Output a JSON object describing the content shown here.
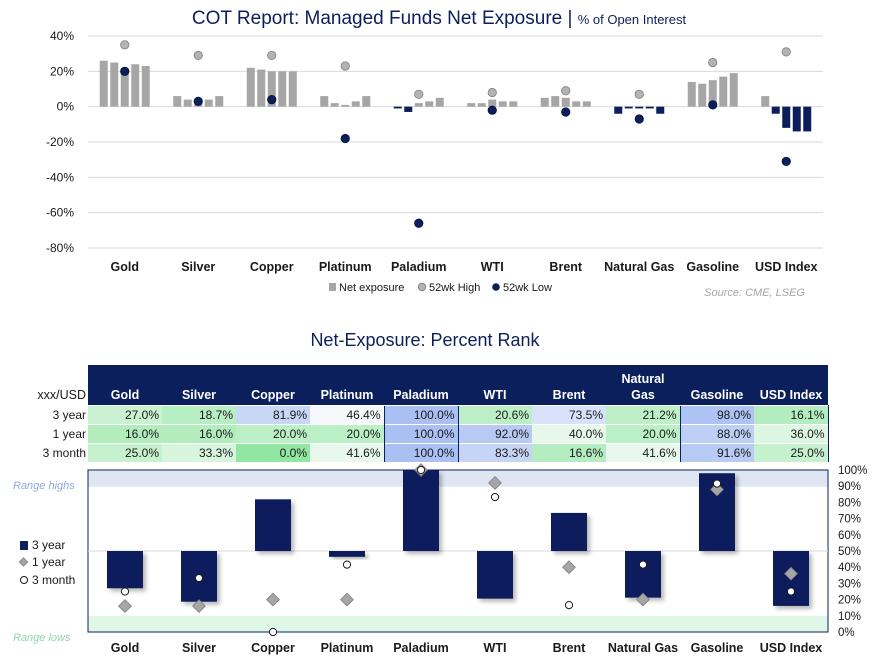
{
  "titles": {
    "top_main": "COT Report: Managed Funds Net Exposure | ",
    "top_sub": "% of Open Interest",
    "source": "Source: CME, LSEG",
    "bottom": "Net-Exposure: Percent Rank"
  },
  "colors": {
    "navy": "#0b1f5c",
    "bar_gray": "#a6a6a6",
    "high_marker": "#a6a6a6",
    "low_marker": "#0b1f5c",
    "range_high_band": "#dfe6f2",
    "range_low_band": "#dff7e6"
  },
  "chart_data": [
    {
      "type": "bar",
      "title": "COT Report: Managed Funds Net Exposure | % of Open Interest",
      "ylim": [
        -80,
        40
      ],
      "yticks": [
        "40%",
        "20%",
        "0%",
        "-20%",
        "-40%",
        "-60%",
        "-80%"
      ],
      "ytick_values": [
        40,
        20,
        0,
        -20,
        -40,
        -60,
        -80
      ],
      "grid": true,
      "categories": [
        "Gold",
        "Silver",
        "Copper",
        "Platinum",
        "Paladium",
        "WTI",
        "Brent",
        "Natural Gas",
        "Gasoline",
        "USD Index"
      ],
      "legend": {
        "placement": "bottom",
        "items": [
          "Net exposure",
          "52wk High",
          "52wk Low"
        ]
      },
      "series": [
        {
          "name": "Net exposure",
          "values": [
            [
              26,
              25,
              22,
              24,
              23
            ],
            [
              6,
              4,
              3,
              4,
              6
            ],
            [
              22,
              21,
              20,
              20,
              20
            ],
            [
              6,
              2,
              1,
              3,
              6
            ],
            [
              -1,
              -3,
              2,
              3,
              5
            ],
            [
              2,
              2,
              4,
              3,
              3
            ],
            [
              5,
              6,
              5,
              3,
              3
            ],
            [
              -4,
              -1,
              -1,
              -1,
              -4
            ],
            [
              14,
              13,
              15,
              17,
              19
            ],
            [
              6,
              -4,
              -12,
              -14,
              -14
            ]
          ]
        },
        {
          "name": "52wk High",
          "values": [
            35,
            29,
            29,
            23,
            7,
            8,
            9,
            7,
            25,
            31
          ]
        },
        {
          "name": "52wk Low",
          "values": [
            20,
            3,
            4,
            -18,
            -66,
            -2,
            -3,
            -7,
            1,
            -31
          ]
        }
      ]
    },
    {
      "type": "bar",
      "title": "Net-Exposure: Percent Rank",
      "ylim": [
        0,
        100
      ],
      "yticks": [
        "100%",
        "90%",
        "80%",
        "70%",
        "60%",
        "50%",
        "40%",
        "30%",
        "20%",
        "10%",
        "0%"
      ],
      "ytick_values": [
        100,
        90,
        80,
        70,
        60,
        50,
        40,
        30,
        20,
        10,
        0
      ],
      "baseline": 50,
      "range_labels": {
        "high": "Range highs",
        "low": "Range lows"
      },
      "categories": [
        "Gold",
        "Silver",
        "Copper",
        "Platinum",
        "Paladium",
        "WTI",
        "Brent",
        "Natural Gas",
        "Gasoline",
        "USD Index"
      ],
      "legend": {
        "placement": "left",
        "items": [
          "3 year",
          "1 year",
          "3 month"
        ]
      },
      "series": [
        {
          "name": "3 year",
          "values": [
            27.0,
            18.7,
            81.9,
            46.4,
            100.0,
            20.6,
            73.5,
            21.2,
            98.0,
            16.1
          ]
        },
        {
          "name": "1 year",
          "values": [
            16.0,
            16.0,
            20.0,
            20.0,
            100.0,
            92.0,
            40.0,
            20.0,
            88.0,
            36.0
          ]
        },
        {
          "name": "3 month",
          "values": [
            25.0,
            33.3,
            0.0,
            41.6,
            100.0,
            83.3,
            16.6,
            41.6,
            91.6,
            25.0
          ]
        }
      ]
    }
  ],
  "table": {
    "corner": "xxx/USD",
    "columns": [
      "Gold",
      "Silver",
      "Copper",
      "Platinum",
      "Paladium",
      "WTI",
      "Brent",
      "Natural Gas",
      "Gasoline",
      "USD Index"
    ],
    "rows": [
      {
        "label": "3 year",
        "cells": [
          "27.0%",
          "18.7%",
          "81.9%",
          "46.4%",
          "100.0%",
          "20.6%",
          "73.5%",
          "21.2%",
          "98.0%",
          "16.1%"
        ]
      },
      {
        "label": "1 year",
        "cells": [
          "16.0%",
          "16.0%",
          "20.0%",
          "20.0%",
          "100.0%",
          "92.0%",
          "40.0%",
          "20.0%",
          "88.0%",
          "36.0%"
        ]
      },
      {
        "label": "3 month",
        "cells": [
          "25.0%",
          "33.3%",
          "0.0%",
          "41.6%",
          "100.0%",
          "83.3%",
          "16.6%",
          "41.6%",
          "91.6%",
          "25.0%"
        ]
      }
    ],
    "values": [
      [
        27.0,
        18.7,
        81.9,
        46.4,
        100.0,
        20.6,
        73.5,
        21.2,
        98.0,
        16.1
      ],
      [
        16.0,
        16.0,
        20.0,
        20.0,
        100.0,
        92.0,
        40.0,
        20.0,
        88.0,
        36.0
      ],
      [
        25.0,
        33.3,
        0.0,
        41.6,
        100.0,
        83.3,
        16.6,
        41.6,
        91.6,
        25.0
      ]
    ]
  }
}
